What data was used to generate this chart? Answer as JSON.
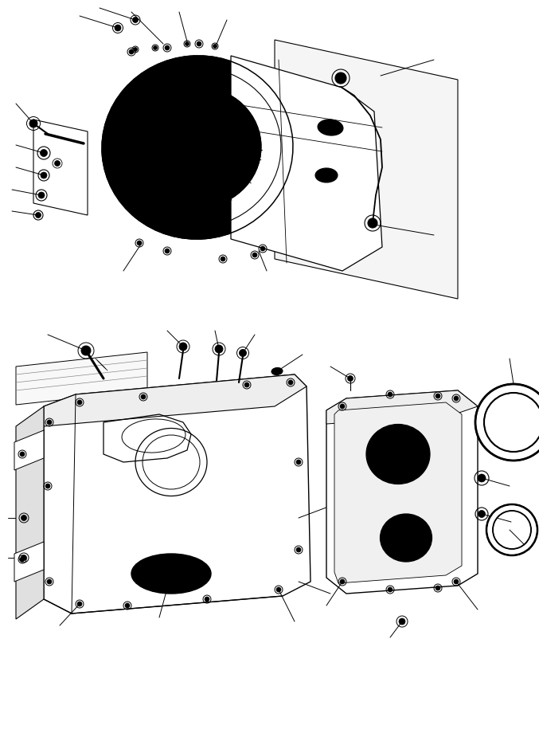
{
  "bg_color": "#ffffff",
  "line_color": "#000000",
  "fig_width": 6.77,
  "fig_height": 9.3,
  "dpi": 100
}
